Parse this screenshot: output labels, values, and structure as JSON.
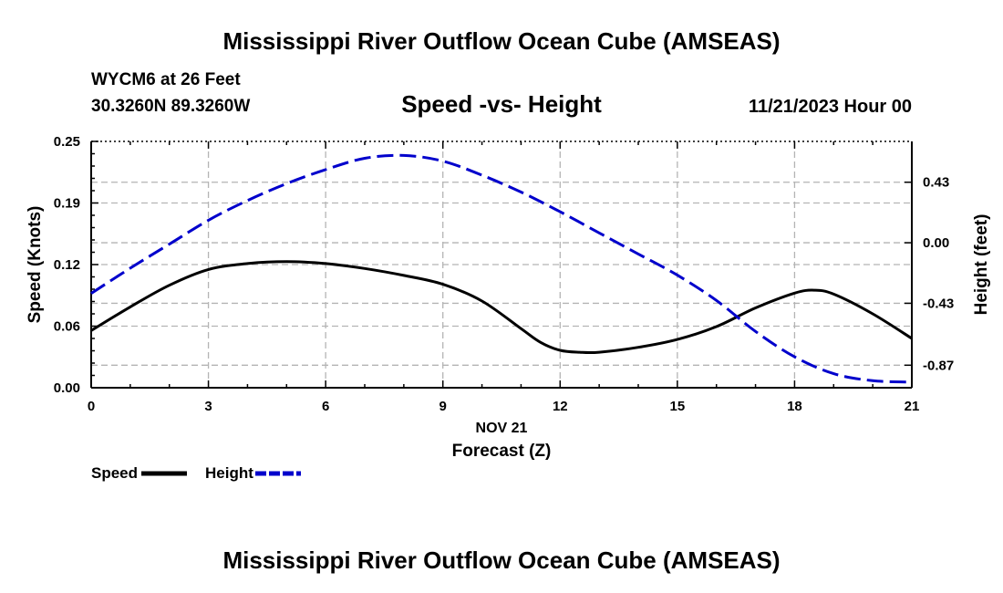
{
  "header": {
    "title": "Mississippi River Outflow Ocean Cube (AMSEAS)",
    "station_line1": "WYCM6 at 26 Feet",
    "station_line2": "30.3260N  89.3260W",
    "plot_title": "Speed -vs- Height",
    "datetime": "11/21/2023 Hour 00"
  },
  "footer": {
    "title": "Mississippi River Outflow Ocean Cube (AMSEAS)"
  },
  "legend": {
    "speed_label": "Speed",
    "height_label": "Height"
  },
  "chart_data": {
    "type": "line",
    "title": "Speed -vs- Height",
    "xlabel": "Forecast (Z)",
    "xdate_label": "NOV 21",
    "ylabel": "Speed (Knots)",
    "y2label": "Height (feet)",
    "xlim": [
      0,
      21
    ],
    "ylim": [
      0,
      0.25
    ],
    "y2lim": [
      -1.03,
      0.72
    ],
    "x_ticks": [
      "0",
      "3",
      "6",
      "9",
      "12",
      "15",
      "18",
      "21"
    ],
    "y_ticks": [
      "0.00",
      "0.06",
      "0.12",
      "0.19",
      "0.25"
    ],
    "y_tick_values": [
      0,
      0.0625,
      0.125,
      0.1875,
      0.25
    ],
    "y2_ticks": [
      "-0.87",
      "-0.43",
      "0.00",
      "0.43"
    ],
    "y2_tick_values": [
      -0.87,
      -0.43,
      0.0,
      0.43
    ],
    "grid": true,
    "series": [
      {
        "name": "Speed",
        "axis": "left",
        "color": "#000000",
        "dash": false,
        "x": [
          0,
          1,
          2,
          3,
          4,
          5,
          6,
          7,
          8,
          9,
          10,
          11,
          11.5,
          12,
          12.5,
          13,
          14,
          15,
          16,
          17,
          18,
          18.5,
          19,
          20,
          21
        ],
        "values": [
          0.058,
          0.082,
          0.104,
          0.12,
          0.126,
          0.128,
          0.126,
          0.121,
          0.114,
          0.105,
          0.088,
          0.06,
          0.046,
          0.038,
          0.036,
          0.036,
          0.041,
          0.049,
          0.062,
          0.081,
          0.096,
          0.099,
          0.095,
          0.075,
          0.05
        ]
      },
      {
        "name": "Height",
        "axis": "right",
        "color": "#0000cc",
        "dash": true,
        "x": [
          0,
          1,
          2,
          3,
          4,
          5,
          6,
          7,
          8,
          9,
          10,
          11,
          12,
          13,
          14,
          15,
          16,
          17,
          18,
          19,
          20,
          21
        ],
        "values": [
          -0.36,
          -0.18,
          -0.01,
          0.16,
          0.3,
          0.42,
          0.52,
          0.6,
          0.62,
          0.58,
          0.48,
          0.36,
          0.22,
          0.07,
          -0.08,
          -0.23,
          -0.41,
          -0.63,
          -0.81,
          -0.93,
          -0.98,
          -0.99
        ]
      }
    ]
  }
}
